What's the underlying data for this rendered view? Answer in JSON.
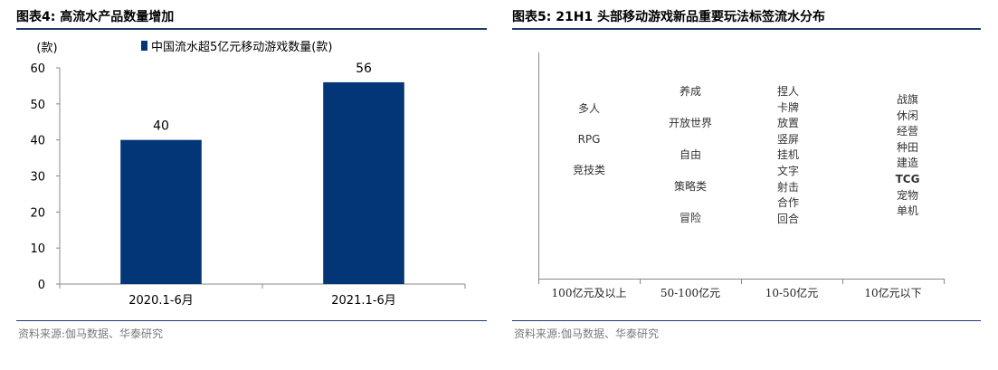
{
  "left": {
    "title": "图表4:  高流水产品数量增加",
    "source": "资料来源:伽马数据、华泰研究",
    "chart_data": {
      "type": "bar",
      "categories": [
        "2020.1-6月",
        "2021.1-6月"
      ],
      "series": [
        {
          "name": "中国流水超5亿元移动游戏数量(款)",
          "values": [
            40,
            56
          ]
        }
      ],
      "ylabel": "(款)",
      "ylim": [
        0,
        60
      ],
      "yticks": [
        0,
        10,
        20,
        30,
        40,
        50,
        60
      ],
      "ytick_labels": [
        "0",
        "10",
        "20",
        "30",
        "40",
        "50",
        "60"
      ],
      "data_labels": [
        "40",
        "56"
      ],
      "legend": "top",
      "grid": false,
      "color": "#023677"
    }
  },
  "right": {
    "title": "图表5:  21H1 头部移动游戏新品重要玩法标签流水分布",
    "source": "资料来源:伽马数据、华泰研究",
    "chart_data": {
      "type": "table",
      "categories": [
        "100亿元及以上",
        "50-100亿元",
        "10-50亿元",
        "10亿元以下"
      ],
      "tags": [
        [
          "多人",
          "RPG",
          "竞技类"
        ],
        [
          "养成",
          "开放世界",
          "自由",
          "策略类",
          "冒险"
        ],
        [
          "捏人",
          "卡牌",
          "放置",
          "竖屏",
          "挂机",
          "文字",
          "射击",
          "合作",
          "回合"
        ],
        [
          "战旗",
          "休闲",
          "经营",
          "种田",
          "建造",
          "TCG",
          "宠物",
          "单机"
        ]
      ]
    }
  }
}
